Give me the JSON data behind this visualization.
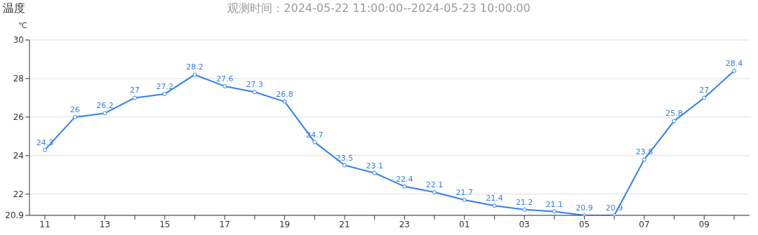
{
  "chart_data": {
    "type": "line",
    "title": "温度",
    "subtitle": "观测时间：2024-05-22 11:00:00--2024-05-23 10:00:00",
    "ylabel": "℃",
    "categories": [
      "11",
      null,
      "13",
      null,
      "15",
      null,
      "17",
      null,
      "19",
      null,
      "21",
      null,
      "23",
      null,
      "01",
      null,
      "03",
      null,
      "05",
      null,
      "07",
      null,
      "09",
      null
    ],
    "values": [
      24.3,
      26,
      26.2,
      27,
      27.2,
      28.2,
      27.6,
      27.3,
      26.8,
      24.7,
      23.5,
      23.1,
      22.4,
      22.1,
      21.7,
      21.4,
      21.2,
      21.1,
      20.9,
      20.9,
      23.8,
      25.8,
      27,
      28.4
    ],
    "color": "#2f7ff0",
    "ylim": [
      20.9,
      30
    ],
    "yticks": [
      20.9,
      22,
      24,
      26,
      28,
      30
    ],
    "grid": "y",
    "marker": "circle",
    "line_style": "solid",
    "data_labels": true
  }
}
